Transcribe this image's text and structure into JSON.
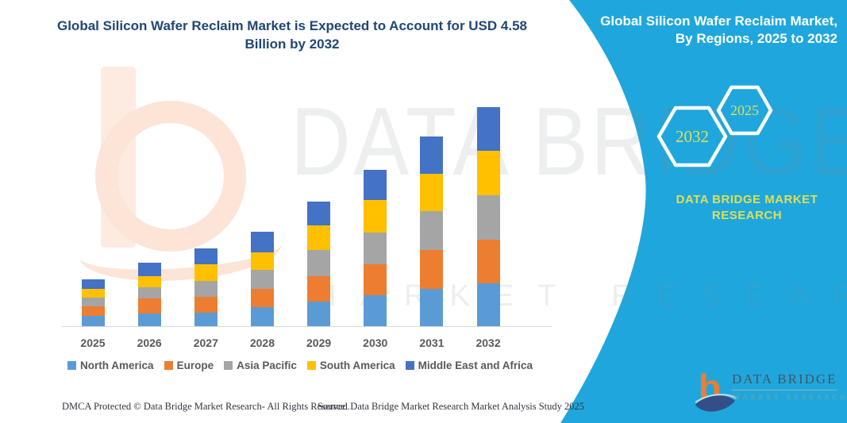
{
  "header": {
    "title": "Global Silicon Wafer Reclaim Market is Expected to Account for USD 4.58 Billion by 2032"
  },
  "panel": {
    "title": "Global Silicon Wafer Reclaim Market, By Regions, 2025 to 2032",
    "accent_color": "#1fa7dd",
    "year_text_color": "#dfdf55",
    "hexagons": [
      {
        "label": "2032"
      },
      {
        "label": "2025"
      }
    ],
    "brand_text": "DATA BRIDGE MARKET RESEARCH"
  },
  "chart_data": {
    "type": "bar",
    "stacked": true,
    "title": "Global Silicon Wafer Reclaim Market is Expected to Account for USD 4.58 Billion by 2032",
    "unit": "USD Billion",
    "categories": [
      "2025",
      "2026",
      "2027",
      "2028",
      "2029",
      "2030",
      "2031",
      "2032"
    ],
    "series": [
      {
        "name": "North America",
        "color": "#5B9BD5",
        "values": [
          0.21,
          0.26,
          0.28,
          0.4,
          0.51,
          0.64,
          0.78,
          0.89
        ]
      },
      {
        "name": "Europe",
        "color": "#ED7D31",
        "values": [
          0.2,
          0.32,
          0.34,
          0.38,
          0.54,
          0.66,
          0.81,
          0.92
        ]
      },
      {
        "name": "Asia Pacific",
        "color": "#A5A5A5",
        "values": [
          0.18,
          0.24,
          0.32,
          0.39,
          0.54,
          0.65,
          0.81,
          0.92
        ]
      },
      {
        "name": "South America",
        "color": "#FFC000",
        "values": [
          0.19,
          0.23,
          0.36,
          0.37,
          0.51,
          0.68,
          0.78,
          0.93
        ]
      },
      {
        "name": "Middle East and Africa",
        "color": "#4472C4",
        "values": [
          0.2,
          0.27,
          0.33,
          0.43,
          0.51,
          0.64,
          0.78,
          0.92
        ]
      }
    ],
    "totals_estimated": [
      0.98,
      1.32,
      1.63,
      1.97,
      2.61,
      3.27,
      3.96,
      4.58
    ],
    "ylim": [
      0,
      4.6
    ],
    "grid": false,
    "y_axis_shown": false,
    "legend_position": "bottom"
  },
  "watermarks": {
    "text_primary": "DATA BRIDGE",
    "text_secondary": "MARKET RESEARCH"
  },
  "footer": {
    "left": "DMCA Protected © Data Bridge Market Research-  All Rights Reserved.",
    "right": "Source: Data Bridge Market Research  Market Analysis Study 2025"
  },
  "logo": {
    "mark_letter": "b",
    "name": "DATA BRIDGE",
    "sub": "MARKET RESEARCH"
  }
}
